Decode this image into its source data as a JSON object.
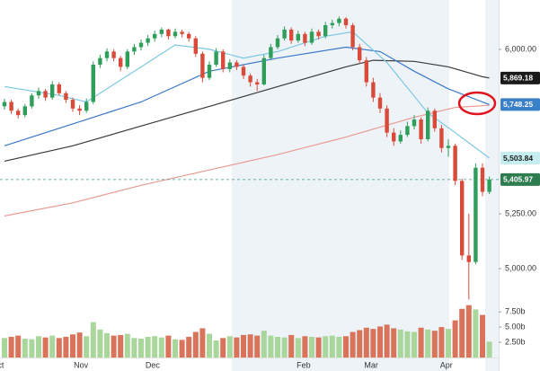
{
  "chart_data": {
    "type": "candlestick",
    "up_color": "#2e9e5a",
    "down_color": "#d94a38",
    "candles": [
      [
        5740,
        5775,
        5725,
        5760
      ],
      [
        5760,
        5770,
        5705,
        5720
      ],
      [
        5720,
        5730,
        5685,
        5700
      ],
      [
        5700,
        5750,
        5690,
        5740
      ],
      [
        5740,
        5800,
        5730,
        5790
      ],
      [
        5790,
        5825,
        5775,
        5810
      ],
      [
        5810,
        5820,
        5765,
        5780
      ],
      [
        5780,
        5855,
        5770,
        5840
      ],
      [
        5840,
        5850,
        5790,
        5800
      ],
      [
        5800,
        5810,
        5755,
        5770
      ],
      [
        5770,
        5780,
        5715,
        5730
      ],
      [
        5730,
        5745,
        5700,
        5720
      ],
      [
        5720,
        5775,
        5710,
        5760
      ],
      [
        5760,
        5945,
        5750,
        5930
      ],
      [
        5930,
        5975,
        5915,
        5960
      ],
      [
        5960,
        6005,
        5945,
        5990
      ],
      [
        5990,
        6000,
        5945,
        5960
      ],
      [
        5960,
        5970,
        5900,
        5920
      ],
      [
        5920,
        6000,
        5910,
        5990
      ],
      [
        5990,
        6025,
        5975,
        6010
      ],
      [
        6010,
        6045,
        5995,
        6030
      ],
      [
        6030,
        6065,
        6015,
        6050
      ],
      [
        6050,
        6085,
        6035,
        6070
      ],
      [
        6070,
        6100,
        6055,
        6090
      ],
      [
        6090,
        6095,
        6045,
        6060
      ],
      [
        6060,
        6095,
        6050,
        6080
      ],
      [
        6080,
        6090,
        6055,
        6070
      ],
      [
        6070,
        6080,
        6035,
        6050
      ],
      [
        6050,
        6060,
        5965,
        5980
      ],
      [
        5980,
        5990,
        5850,
        5870
      ],
      [
        5870,
        5945,
        5860,
        5930
      ],
      [
        5930,
        6005,
        5920,
        5990
      ],
      [
        5990,
        6000,
        5895,
        5910
      ],
      [
        5910,
        5955,
        5895,
        5940
      ],
      [
        5940,
        5950,
        5905,
        5920
      ],
      [
        5920,
        5930,
        5865,
        5880
      ],
      [
        5880,
        5890,
        5830,
        5850
      ],
      [
        5850,
        5865,
        5810,
        5840
      ],
      [
        5840,
        5975,
        5835,
        5960
      ],
      [
        5960,
        6025,
        5950,
        6010
      ],
      [
        6010,
        6065,
        6000,
        6050
      ],
      [
        6050,
        6105,
        6040,
        6090
      ],
      [
        6090,
        6100,
        6025,
        6040
      ],
      [
        6040,
        6085,
        6030,
        6070
      ],
      [
        6070,
        6080,
        6015,
        6030
      ],
      [
        6030,
        6095,
        6020,
        6080
      ],
      [
        6080,
        6090,
        6045,
        6060
      ],
      [
        6060,
        6125,
        6050,
        6110
      ],
      [
        6110,
        6135,
        6095,
        6120
      ],
      [
        6120,
        6150,
        6105,
        6140
      ],
      [
        6140,
        6147,
        6095,
        6110
      ],
      [
        6110,
        6120,
        5995,
        6010
      ],
      [
        6010,
        6025,
        5935,
        5950
      ],
      [
        5950,
        5965,
        5830,
        5850
      ],
      [
        5850,
        5870,
        5760,
        5780
      ],
      [
        5780,
        5800,
        5710,
        5730
      ],
      [
        5730,
        5745,
        5600,
        5620
      ],
      [
        5620,
        5640,
        5560,
        5580
      ],
      [
        5580,
        5630,
        5570,
        5610
      ],
      [
        5610,
        5670,
        5600,
        5650
      ],
      [
        5650,
        5700,
        5635,
        5680
      ],
      [
        5680,
        5690,
        5570,
        5590
      ],
      [
        5590,
        5735,
        5580,
        5720
      ],
      [
        5720,
        5730,
        5625,
        5640
      ],
      [
        5640,
        5655,
        5530,
        5550
      ],
      [
        5550,
        5590,
        5510,
        5560
      ],
      [
        5560,
        5570,
        5380,
        5400
      ],
      [
        5400,
        5410,
        5040,
        5060
      ],
      [
        5060,
        5250,
        4860,
        5030
      ],
      [
        5030,
        5480,
        5020,
        5460
      ],
      [
        5460,
        5480,
        5330,
        5350
      ],
      [
        5350,
        5420,
        5340,
        5405.97
      ]
    ],
    "volume": [
      3.2,
      3.4,
      3.6,
      3.1,
      3.0,
      3.5,
      3.3,
      3.6,
      3.2,
      3.4,
      3.8,
      4.1,
      3.5,
      5.8,
      4.6,
      4.0,
      3.6,
      3.7,
      3.9,
      3.2,
      3.1,
      3.4,
      3.5,
      3.3,
      3.6,
      3.0,
      2.9,
      3.4,
      4.2,
      4.8,
      3.9,
      2.8,
      3.2,
      3.5,
      3.3,
      3.7,
      3.8,
      3.6,
      4.4,
      3.6,
      3.4,
      3.3,
      3.7,
      3.2,
      3.5,
      3.4,
      3.3,
      3.5,
      3.6,
      3.4,
      3.5,
      4.2,
      4.5,
      4.9,
      4.7,
      5.1,
      5.4,
      4.8,
      4.6,
      4.3,
      4.2,
      4.9,
      4.6,
      4.4,
      5.0,
      4.7,
      6.1,
      8.0,
      8.6,
      7.9,
      7.0,
      2.6
    ],
    "volume_up_color": "#a9d69b",
    "volume_down_color": "#d9735a",
    "moving_averages": [
      {
        "color": "#e89a94",
        "x": [
          0,
          10,
          20,
          30,
          40,
          50,
          60,
          66,
          71
        ],
        "values": [
          5240,
          5300,
          5380,
          5450,
          5520,
          5600,
          5690,
          5735,
          5745
        ]
      },
      {
        "color": "#3a3a3a",
        "x": [
          0,
          10,
          20,
          30,
          40,
          50,
          54,
          60,
          65,
          70,
          71
        ],
        "values": [
          5490,
          5560,
          5650,
          5740,
          5830,
          5920,
          5950,
          5945,
          5920,
          5875,
          5869.18
        ]
      },
      {
        "color": "#3a78c9",
        "x": [
          0,
          10,
          20,
          30,
          40,
          50,
          55,
          60,
          65,
          71
        ],
        "values": [
          5560,
          5660,
          5760,
          5900,
          5960,
          6010,
          5990,
          5900,
          5820,
          5748.25
        ]
      },
      {
        "color": "#7ec8e3",
        "x": [
          0,
          8,
          12,
          18,
          25,
          30,
          35,
          40,
          47,
          51,
          56,
          62,
          66,
          71
        ],
        "values": [
          5830,
          5790,
          5760,
          5880,
          6020,
          6000,
          5960,
          5990,
          6060,
          6080,
          5940,
          5710,
          5620,
          5503.84
        ]
      }
    ],
    "ylim": [
      4873,
      6225
    ],
    "yticks": [
      {
        "value": 6000,
        "label": "6,000.00"
      },
      {
        "value": 5250,
        "label": "5,250.00"
      },
      {
        "value": 5000,
        "label": "5,000.00"
      }
    ],
    "volume_lim": [
      0,
      9
    ],
    "volume_ticks": [
      {
        "value": 7.5,
        "label": "7.50b"
      },
      {
        "value": 5,
        "label": "5.00b"
      },
      {
        "value": 2.5,
        "label": "2.50b"
      }
    ],
    "price_labels": [
      {
        "value": 5869.18,
        "label": "5,869.18",
        "color": "#1a1a1a",
        "text_color": "#ffffff"
      },
      {
        "value": 5748.25,
        "label": "5,748.25",
        "color": "#3a80c8",
        "text_color": "#ffffff"
      },
      {
        "value": 5503.84,
        "label": "5,503.84",
        "color": "#c6edf0",
        "text_color": "#1a1a1a"
      },
      {
        "value": 5405.97,
        "label": "5,405.97",
        "color": "#2e7d4f",
        "text_color": "#ffffff"
      }
    ],
    "month_ticks": [
      {
        "label": "Oct",
        "at": -1
      },
      {
        "label": "Nov",
        "at": 11.2
      },
      {
        "label": "Dec",
        "at": 21.7
      },
      {
        "label": "Feb",
        "at": 43.8
      },
      {
        "label": "Mar",
        "at": 53.7
      },
      {
        "label": "Apr",
        "at": 64.7
      }
    ]
  }
}
